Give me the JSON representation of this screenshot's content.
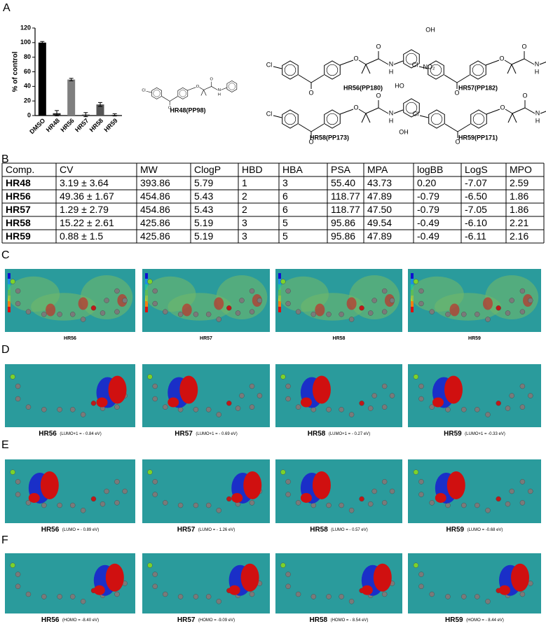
{
  "panel_labels": [
    "A",
    "B",
    "C",
    "D",
    "E",
    "F"
  ],
  "chart_data": {
    "type": "bar",
    "ylabel": "% of control",
    "categories": [
      "DMSO",
      "HR48",
      "HR56",
      "HR57",
      "HR58",
      "HR59"
    ],
    "values": [
      100,
      3.19,
      49.36,
      1.29,
      15.22,
      0.88
    ],
    "errors": [
      1.5,
      3.64,
      1.67,
      2.79,
      2.61,
      1.5
    ],
    "colors": [
      "#000000",
      "#2b2b2b",
      "#7f7f7f",
      "#3a3a3a",
      "#555555",
      "#3a3a3a"
    ],
    "ylim": [
      0,
      120
    ],
    "yticks": [
      0,
      20,
      40,
      60,
      80,
      100,
      120
    ]
  },
  "structures": [
    {
      "label": "HR48(PP98)",
      "atoms": [
        "Cl",
        "O",
        "O",
        "O",
        "N",
        "H"
      ]
    },
    {
      "label": "HR56(PP180)",
      "atoms": [
        "Cl",
        "O",
        "O",
        "O",
        "N",
        "H",
        "OH",
        "NO₂"
      ]
    },
    {
      "label": "HR57(PP182)",
      "atoms": [
        "Cl",
        "O",
        "O",
        "O",
        "N",
        "H",
        "OH",
        "NO₂"
      ]
    },
    {
      "label": "HR58(PP173)",
      "atoms": [
        "Cl",
        "O",
        "O",
        "O",
        "N",
        "H",
        "HO",
        "OH"
      ]
    },
    {
      "label": "HR59(PP171)",
      "atoms": [
        "Cl",
        "O",
        "O",
        "O",
        "N",
        "H",
        "OH",
        "OH"
      ]
    }
  ],
  "table": {
    "header": [
      "Comp.",
      "CV",
      "MW",
      "ClogP",
      "HBD",
      "HBA",
      "PSA",
      "MPA",
      "logBB",
      "LogS",
      "MPO"
    ],
    "rows": [
      [
        "HR48",
        "3.19 ± 3.64",
        "393.86",
        "5.79",
        "1",
        "3",
        "55.40",
        "43.73",
        "0.20",
        "-7.07",
        "2.59"
      ],
      [
        "HR56",
        "49.36 ± 1.67",
        "454.86",
        "5.43",
        "2",
        "6",
        "118.77",
        "47.89",
        "-0.79",
        "-6.50",
        "1.86"
      ],
      [
        "HR57",
        "1.29 ± 2.79",
        "454.86",
        "5.43",
        "2",
        "6",
        "118.77",
        "47.50",
        "-0.79",
        "-7.05",
        "1.86"
      ],
      [
        "HR58",
        "15.22 ± 2.61",
        "425.86",
        "5.19",
        "3",
        "5",
        "95.86",
        "49.54",
        "-0.49",
        "-6.10",
        "2.21"
      ],
      [
        "HR59",
        "0.88 ± 1.5",
        "425.86",
        "5.19",
        "3",
        "5",
        "95.86",
        "47.89",
        "-0.49",
        "-6.11",
        "2.16"
      ]
    ]
  },
  "orbital_panels": [
    {
      "items": [
        {
          "name": "HR56"
        },
        {
          "name": "HR57"
        },
        {
          "name": "HR58"
        },
        {
          "name": "HR59"
        }
      ]
    },
    {
      "items": [
        {
          "name": "HR56",
          "note": "(LUMO+1 = - 0.84 eV)"
        },
        {
          "name": "HR57",
          "note": "(LUMO+1 = - 0.69 eV)"
        },
        {
          "name": "HR58",
          "note": "(LUMO+1 = - 0.27 eV)"
        },
        {
          "name": "HR59",
          "note": "(LUMO+1 = -0.33 eV)"
        }
      ]
    },
    {
      "items": [
        {
          "name": "HR56",
          "note": "(LUMO = - 0.89 eV)"
        },
        {
          "name": "HR57",
          "note": "(LUMO = - 1.26 eV)"
        },
        {
          "name": "HR58",
          "note": "(LUMO = - 0.57 eV)"
        },
        {
          "name": "HR59",
          "note": "(LUMO = -0.68 eV)"
        }
      ]
    },
    {
      "items": [
        {
          "name": "HR56",
          "note": "(HOMO = -8.40 eV)"
        },
        {
          "name": "HR57",
          "note": "(HOMO = -9.09 eV)"
        },
        {
          "name": "HR58",
          "note": "(HOMO = - 8.54 eV)"
        },
        {
          "name": "HR59",
          "note": "(HOMO = - 8.44 eV)"
        }
      ]
    }
  ]
}
